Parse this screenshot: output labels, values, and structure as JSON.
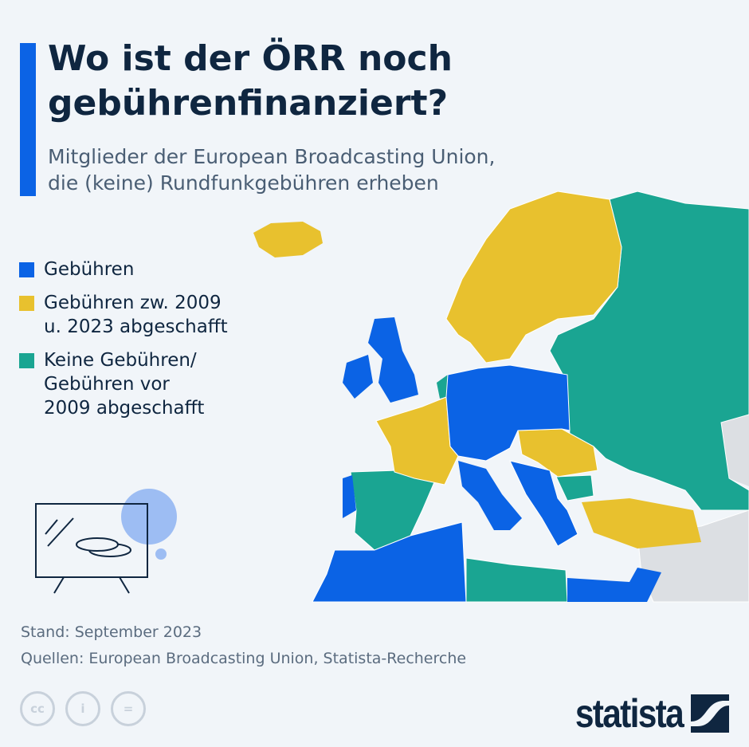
{
  "title": "Wo ist der ÖRR noch gebührenfinanziert?",
  "title_line1": "Wo ist der ÖRR noch",
  "title_line2": "gebührenfinanziert?",
  "subtitle_line1": "Mitglieder der European Broadcasting Union,",
  "subtitle_line2": "die (keine) Rundfunkgebühren erheben",
  "legend": [
    {
      "label_lines": [
        "Gebühren"
      ],
      "color": "#0b63e5"
    },
    {
      "label_lines": [
        "Gebühren zw. 2009",
        "u. 2023 abgeschafft"
      ],
      "color": "#e8c12e"
    },
    {
      "label_lines": [
        "Keine Gebühren/",
        "Gebühren vor",
        "2009 abgeschafft"
      ],
      "color": "#1aa592"
    }
  ],
  "footer": {
    "date": "Stand: September 2023",
    "sources": "Quellen: European Broadcasting Union, Statista-Recherche"
  },
  "license_icons": [
    "cc-icon",
    "attribution-icon",
    "no-derivatives-icon"
  ],
  "brand": "statista",
  "colors": {
    "fee": "#0b63e5",
    "abolished": "#e8c12e",
    "none": "#1aa592",
    "nonmember": "#dcdfe3",
    "background": "#f1f5f9"
  }
}
